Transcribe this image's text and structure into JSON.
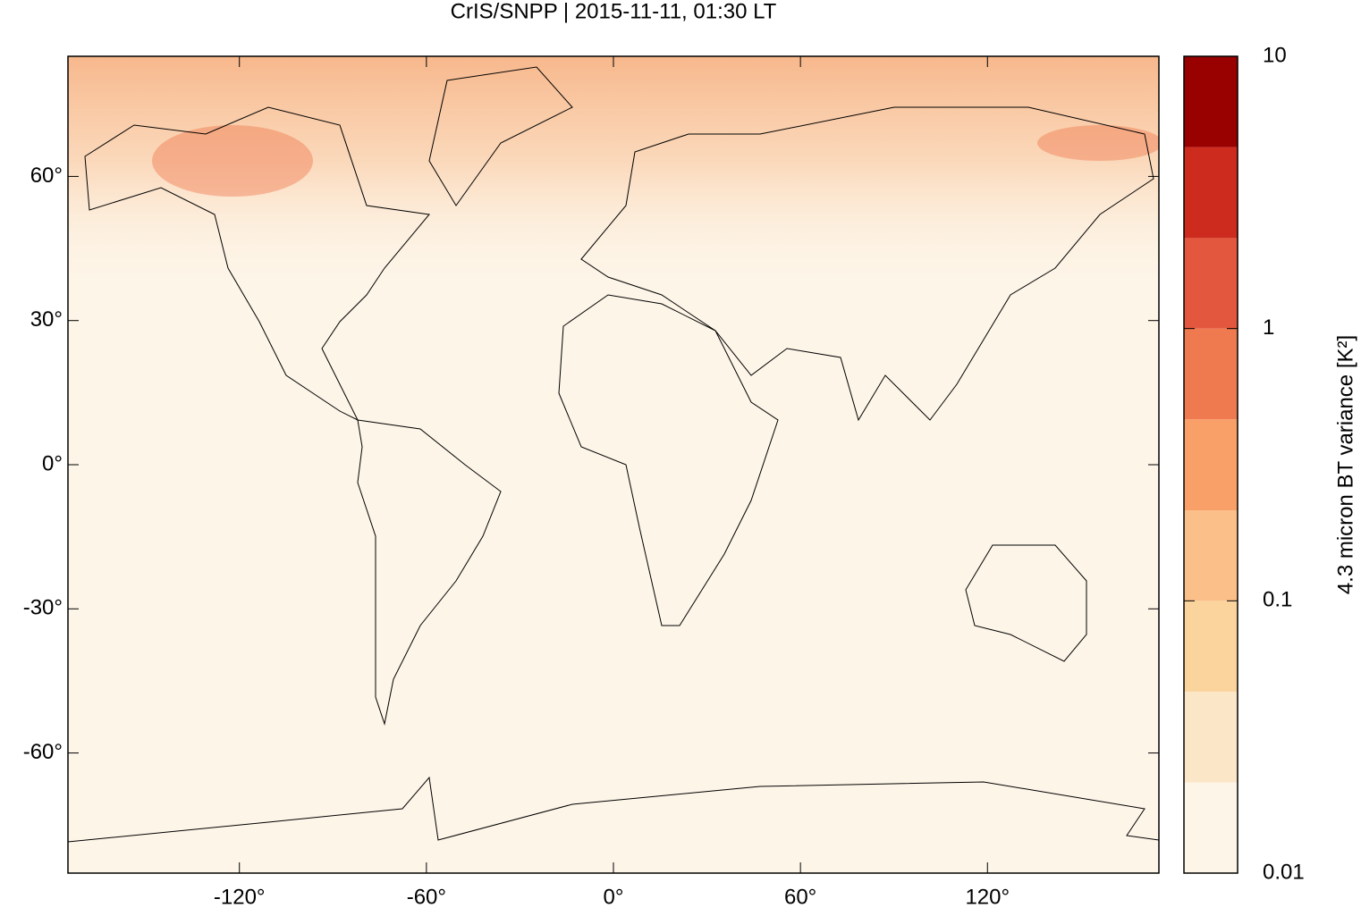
{
  "chart_data": {
    "type": "map",
    "title": "CrIS/SNPP | 2015-11-11, 01:30 LT",
    "xlim": [
      -175,
      175
    ],
    "ylim": [
      -85,
      85
    ],
    "xticks": [
      {
        "value": -120,
        "label": "-120°"
      },
      {
        "value": -60,
        "label": "-60°"
      },
      {
        "value": 0,
        "label": "0°"
      },
      {
        "value": 60,
        "label": "60°"
      },
      {
        "value": 120,
        "label": "120°"
      }
    ],
    "yticks": [
      {
        "value": -60,
        "label": "-60°"
      },
      {
        "value": -30,
        "label": "-30°"
      },
      {
        "value": 0,
        "label": "0°"
      },
      {
        "value": 30,
        "label": "30°"
      },
      {
        "value": 60,
        "label": "60°"
      }
    ],
    "colorbar": {
      "label": "4.3 micron BT variance [K²]",
      "log": true,
      "lim": [
        0.01,
        10
      ],
      "ticks": [
        0.01,
        0.1,
        1,
        10
      ],
      "levels": [
        0.01,
        0.0215,
        0.0464,
        0.1,
        0.215,
        0.464,
        1,
        2.15,
        4.64,
        10
      ],
      "colors": [
        "#fdf5e8",
        "#fbe7c8",
        "#fbd39c",
        "#fbc08a",
        "#f9a068",
        "#ef7a50",
        "#e4573f",
        "#cc2b1d",
        "#990000"
      ]
    }
  }
}
